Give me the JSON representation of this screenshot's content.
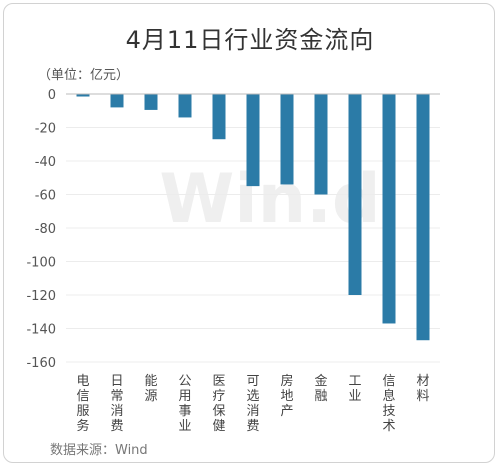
{
  "title": "4月11日行业资金流向",
  "unit_label": "（单位：亿元）",
  "source_label": "数据来源：Wind",
  "watermark": "Win.d",
  "colors": {
    "bar": "#2B7BA7",
    "grid": "#ececec",
    "axis": "#bbbbbb",
    "watermark": "#efefef"
  },
  "chart_data": {
    "type": "bar",
    "title": "4月11日行业资金流向",
    "ylabel": "（单位：亿元）",
    "xlabel": "",
    "ylim": [
      -160,
      0
    ],
    "yticks": [
      0,
      -20,
      -40,
      -60,
      -80,
      -100,
      -120,
      -140,
      -160
    ],
    "grid": true,
    "categories": [
      "电信服务",
      "日常消费",
      "能源",
      "公用事业",
      "医疗保健",
      "可选消费",
      "房地产",
      "金融",
      "工业",
      "信息技术",
      "材料"
    ],
    "values": [
      -1.5,
      -8,
      -9.5,
      -14,
      -27,
      -55,
      -54,
      -60,
      -120,
      -137,
      -147
    ]
  }
}
